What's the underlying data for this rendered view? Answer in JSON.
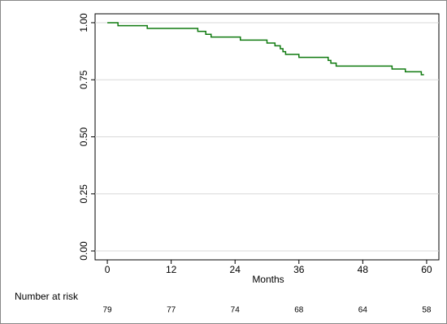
{
  "chart_data": {
    "type": "step",
    "x": [
      0,
      2,
      7.5,
      17,
      18.5,
      19.5,
      25,
      30,
      31.5,
      32.5,
      33,
      33.5,
      36,
      41.5,
      42,
      43,
      53.5,
      56,
      59,
      59.5
    ],
    "series": [
      {
        "color": "#0f7a0f",
        "values": [
          1.0,
          0.987,
          0.975,
          0.962,
          0.949,
          0.937,
          0.924,
          0.911,
          0.899,
          0.886,
          0.873,
          0.861,
          0.848,
          0.835,
          0.823,
          0.81,
          0.797,
          0.785,
          0.772,
          0.772
        ]
      }
    ],
    "xlim": [
      -2.3,
      62.3
    ],
    "ylim": [
      -0.039,
      1.039
    ],
    "xticks": [
      0,
      12,
      24,
      36,
      48,
      60
    ],
    "yticks": [
      {
        "value": 0,
        "label": "0.00"
      },
      {
        "value": 0.25,
        "label": "0.25"
      },
      {
        "value": 0.5,
        "label": "0.50"
      },
      {
        "value": 0.75,
        "label": "0.75"
      },
      {
        "value": 1,
        "label": "1.00"
      }
    ],
    "xlabel": "Months",
    "grid": true,
    "risk_table": {
      "label": "Number at risk",
      "counts": [
        "79",
        "77",
        "74",
        "68",
        "64",
        "58"
      ]
    }
  }
}
